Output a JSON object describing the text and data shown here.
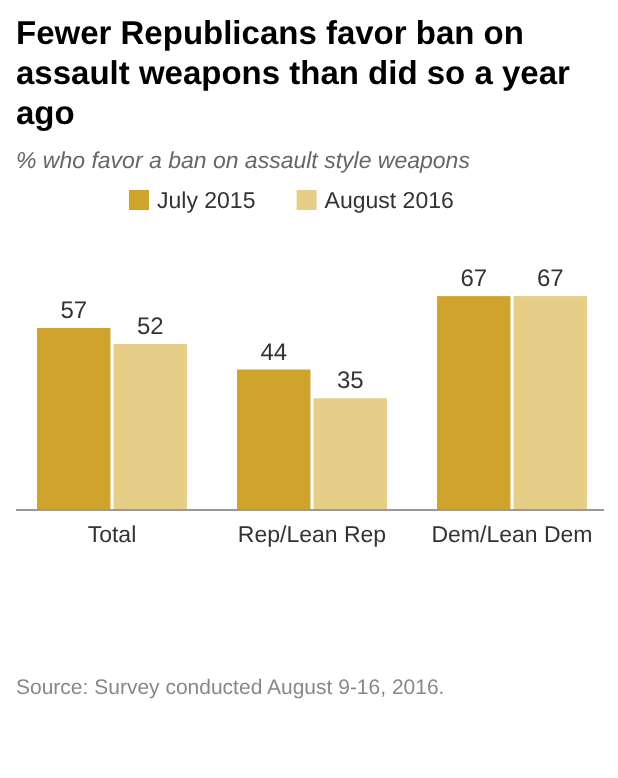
{
  "chart_data": {
    "type": "bar",
    "title": "Fewer Republicans favor ban on assault weapons than did so a year ago",
    "subtitle": "% who favor a ban on assault style weapons",
    "categories": [
      "Total",
      "Rep/Lean Rep",
      "Dem/Lean Dem"
    ],
    "series": [
      {
        "name": "July 2015",
        "color": "#d0a32d",
        "values": [
          57,
          44,
          67
        ]
      },
      {
        "name": "August 2016",
        "color": "#e6cd88",
        "values": [
          52,
          35,
          67
        ]
      }
    ],
    "data_labels": true,
    "legend": "top",
    "annotations": [
      "Source: Survey conducted August 9-16, 2016."
    ]
  }
}
